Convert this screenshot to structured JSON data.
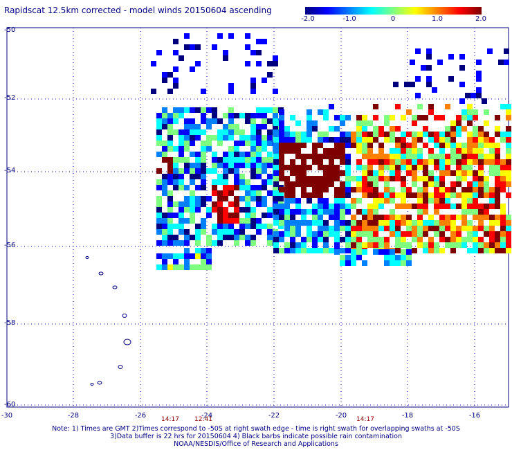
{
  "title": "Rapidscat 12.5km corrected - model winds 20150604 ascending",
  "colorbar": {
    "ticks": [
      "-2.0",
      "-1.0",
      "0",
      "1.0",
      "2.0"
    ],
    "tick_values": [
      -2.0,
      -1.0,
      0,
      1.0,
      2.0
    ],
    "colors": [
      "#00007f",
      "#0000ff",
      "#007fff",
      "#00ffff",
      "#7fff7f",
      "#ffff00",
      "#ff7f00",
      "#ff0000",
      "#7f0000"
    ]
  },
  "axes": {
    "lat_labels": [
      "-50",
      "-52",
      "-54",
      "-56",
      "-58",
      "-60"
    ],
    "lat_values": [
      -50,
      -52,
      -54,
      -56,
      -58,
      -60
    ],
    "lon_labels": [
      "-30",
      "-28",
      "-26",
      "-24",
      "-22",
      "-20",
      "-18",
      "-16"
    ],
    "lon_values": [
      -30,
      -28,
      -26,
      -24,
      -22,
      -20,
      -18,
      -16
    ],
    "lat_range": [
      -60.2,
      -49.8
    ],
    "lon_range": [
      -30,
      -15
    ]
  },
  "swath_times": [
    {
      "label": "14:17",
      "lon": -25.2
    },
    {
      "label": "12:41",
      "lon": -24.0
    },
    {
      "label": "14:17",
      "lon": -19.2
    }
  ],
  "notes": [
    "Note: 1) Times are GMT 2)Times correspond to -50S at right swath edge - time is right swath for overlapping swaths at -50S",
    "3)Data buffer is 22 hrs for 20150604 4) Black barbs indicate possible rain contamination",
    "NOAA/NESDIS/Office of Research and Applications"
  ],
  "colors": {
    "text": "#000080",
    "time_label": "#8b0000",
    "grid": "#0000aa",
    "coast": "#000080"
  }
}
